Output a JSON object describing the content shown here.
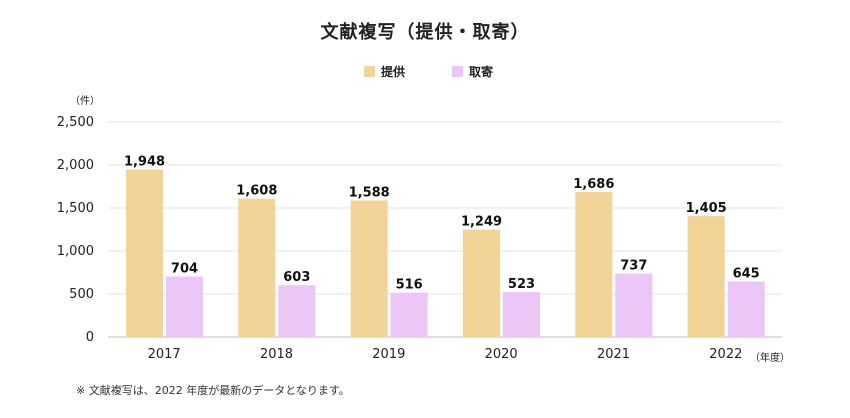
{
  "chart_data": {
    "type": "bar",
    "title": "文献複写（提供・取寄）",
    "categories": [
      "2017",
      "2018",
      "2019",
      "2020",
      "2021",
      "2022"
    ],
    "series": [
      {
        "name": "提供",
        "color": "#F2D398",
        "values": [
          1948,
          1608,
          1588,
          1249,
          1686,
          1405
        ]
      },
      {
        "name": "取寄",
        "color": "#EDC6F8",
        "values": [
          704,
          603,
          516,
          523,
          737,
          645
        ]
      }
    ],
    "ylabel_unit": "（件）",
    "x_unit": "（年度）",
    "ylim": [
      0,
      2500
    ],
    "yticks": [
      0,
      500,
      1000,
      1500,
      2000,
      2500
    ],
    "ytick_labels": [
      "0",
      "500",
      "1,000",
      "1,500",
      "2,000",
      "2,500"
    ],
    "grid": true,
    "legend_position": "top-center"
  },
  "footnote": "※ 文献複写は、2022 年度が最新のデータとなります。"
}
